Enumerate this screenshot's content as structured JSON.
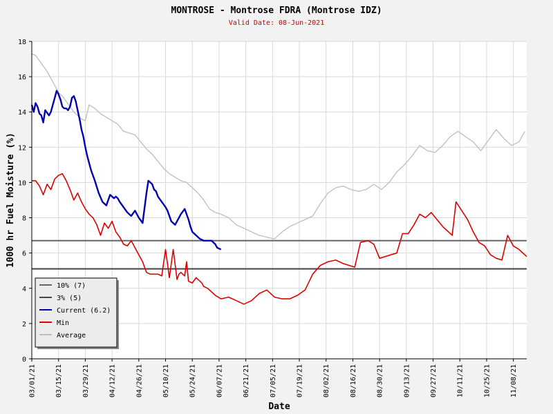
{
  "title": "MONTROSE - Montrose FDRA (Montrose IDZ)",
  "subtitle": "Valid Date: 08-Jun-2021",
  "colors": {
    "background": "#f2f2f2",
    "plot_bg": "#ffffff",
    "grid": "#d8d8d8",
    "title": "#000000",
    "subtitle": "#cc0000",
    "current": "#0000b0",
    "min": "#dd0000",
    "average": "#bdbdbd",
    "threshold": "#555555"
  },
  "chart_data": {
    "type": "line",
    "xlabel": "Date",
    "ylabel": "1000 hr Fuel Moisture (%)",
    "ylim": [
      0,
      18
    ],
    "yticks": [
      0,
      2,
      4,
      6,
      8,
      10,
      12,
      14,
      16,
      18
    ],
    "xlim": [
      "2021-03-01",
      "2021-11-15"
    ],
    "xticks": [
      "03/01/21",
      "03/15/21",
      "03/29/21",
      "04/12/21",
      "04/26/21",
      "05/10/21",
      "05/24/21",
      "06/07/21",
      "06/21/21",
      "07/05/21",
      "07/19/21",
      "08/02/21",
      "08/16/21",
      "08/30/21",
      "09/13/21",
      "09/27/21",
      "10/11/21",
      "10/25/21",
      "11/08/21"
    ],
    "grid": true,
    "legend_position": "bottom-left",
    "hlines": [
      {
        "name": "10% (7)",
        "value": 6.7,
        "color": "#666666"
      },
      {
        "name": "3% (5)",
        "value": 5.1,
        "color": "#444444"
      }
    ],
    "series": [
      {
        "name": "Current (6.2)",
        "color": "#0000b0",
        "x": [
          "2021-03-01",
          "2021-03-02",
          "2021-03-03",
          "2021-03-04",
          "2021-03-05",
          "2021-03-06",
          "2021-03-07",
          "2021-03-08",
          "2021-03-10",
          "2021-03-11",
          "2021-03-12",
          "2021-03-13",
          "2021-03-14",
          "2021-03-15",
          "2021-03-16",
          "2021-03-17",
          "2021-03-18",
          "2021-03-19",
          "2021-03-20",
          "2021-03-21",
          "2021-03-22",
          "2021-03-23",
          "2021-03-24",
          "2021-03-25",
          "2021-03-26",
          "2021-03-27",
          "2021-03-28",
          "2021-03-29",
          "2021-03-30",
          "2021-04-01",
          "2021-04-03",
          "2021-04-05",
          "2021-04-07",
          "2021-04-09",
          "2021-04-11",
          "2021-04-13",
          "2021-04-14",
          "2021-04-15",
          "2021-04-16",
          "2021-04-18",
          "2021-04-20",
          "2021-04-22",
          "2021-04-24",
          "2021-04-26",
          "2021-04-28",
          "2021-04-30",
          "2021-05-01",
          "2021-05-02",
          "2021-05-03",
          "2021-05-04",
          "2021-05-05",
          "2021-05-06",
          "2021-05-08",
          "2021-05-10",
          "2021-05-11",
          "2021-05-13",
          "2021-05-15",
          "2021-05-17",
          "2021-05-18",
          "2021-05-20",
          "2021-05-21",
          "2021-05-22",
          "2021-05-23",
          "2021-05-24",
          "2021-05-26",
          "2021-05-28",
          "2021-05-30",
          "2021-06-01",
          "2021-06-03",
          "2021-06-05",
          "2021-06-06",
          "2021-06-08"
        ],
        "y": [
          14.4,
          14.0,
          14.5,
          14.3,
          13.9,
          13.8,
          13.4,
          14.1,
          13.8,
          14.0,
          14.4,
          14.8,
          15.2,
          15.0,
          14.7,
          14.3,
          14.2,
          14.2,
          14.1,
          14.3,
          14.8,
          14.9,
          14.6,
          14.1,
          13.6,
          13.0,
          12.6,
          12.0,
          11.5,
          10.7,
          10.1,
          9.4,
          8.9,
          8.7,
          9.3,
          9.1,
          9.2,
          9.1,
          8.9,
          8.6,
          8.3,
          8.1,
          8.4,
          8.0,
          7.7,
          9.4,
          10.1,
          10.0,
          9.9,
          9.6,
          9.5,
          9.2,
          8.9,
          8.6,
          8.4,
          7.8,
          7.6,
          8.0,
          8.2,
          8.5,
          8.2,
          7.9,
          7.5,
          7.2,
          7.0,
          6.8,
          6.7,
          6.7,
          6.7,
          6.5,
          6.3,
          6.2
        ]
      },
      {
        "name": "Min",
        "color": "#dd0000",
        "x": [
          "2021-03-01",
          "2021-03-03",
          "2021-03-05",
          "2021-03-07",
          "2021-03-09",
          "2021-03-11",
          "2021-03-13",
          "2021-03-15",
          "2021-03-17",
          "2021-03-19",
          "2021-03-21",
          "2021-03-23",
          "2021-03-25",
          "2021-03-27",
          "2021-03-29",
          "2021-03-31",
          "2021-04-02",
          "2021-04-04",
          "2021-04-06",
          "2021-04-08",
          "2021-04-10",
          "2021-04-12",
          "2021-04-14",
          "2021-04-16",
          "2021-04-18",
          "2021-04-20",
          "2021-04-22",
          "2021-04-24",
          "2021-04-26",
          "2021-04-28",
          "2021-04-30",
          "2021-05-02",
          "2021-05-04",
          "2021-05-06",
          "2021-05-08",
          "2021-05-10",
          "2021-05-12",
          "2021-05-14",
          "2021-05-16",
          "2021-05-17",
          "2021-05-18",
          "2021-05-19",
          "2021-05-20",
          "2021-05-21",
          "2021-05-22",
          "2021-05-24",
          "2021-05-26",
          "2021-05-28",
          "2021-05-29",
          "2021-05-30",
          "2021-06-01",
          "2021-06-03",
          "2021-06-05",
          "2021-06-08",
          "2021-06-12",
          "2021-06-16",
          "2021-06-20",
          "2021-06-24",
          "2021-06-28",
          "2021-07-02",
          "2021-07-06",
          "2021-07-10",
          "2021-07-14",
          "2021-07-18",
          "2021-07-22",
          "2021-07-26",
          "2021-07-30",
          "2021-08-03",
          "2021-08-07",
          "2021-08-11",
          "2021-08-14",
          "2021-08-17",
          "2021-08-20",
          "2021-08-24",
          "2021-08-27",
          "2021-08-30",
          "2021-09-02",
          "2021-09-05",
          "2021-09-08",
          "2021-09-11",
          "2021-09-14",
          "2021-09-17",
          "2021-09-20",
          "2021-09-23",
          "2021-09-26",
          "2021-09-29",
          "2021-10-02",
          "2021-10-05",
          "2021-10-07",
          "2021-10-09",
          "2021-10-12",
          "2021-10-15",
          "2021-10-18",
          "2021-10-21",
          "2021-10-24",
          "2021-10-27",
          "2021-10-30",
          "2021-11-02",
          "2021-11-05",
          "2021-11-08",
          "2021-11-11",
          "2021-11-15"
        ],
        "y": [
          10.1,
          10.1,
          9.8,
          9.3,
          9.9,
          9.6,
          10.2,
          10.4,
          10.5,
          10.1,
          9.6,
          9.0,
          9.4,
          8.9,
          8.5,
          8.2,
          8.0,
          7.6,
          7.0,
          7.7,
          7.4,
          7.8,
          7.2,
          6.9,
          6.5,
          6.4,
          6.7,
          6.3,
          5.9,
          5.5,
          4.9,
          4.8,
          4.8,
          4.8,
          4.7,
          6.2,
          4.6,
          6.2,
          4.5,
          4.8,
          4.9,
          4.8,
          4.7,
          5.5,
          4.4,
          4.3,
          4.6,
          4.4,
          4.3,
          4.1,
          4.0,
          3.8,
          3.6,
          3.4,
          3.5,
          3.3,
          3.1,
          3.3,
          3.7,
          3.9,
          3.5,
          3.4,
          3.4,
          3.6,
          3.9,
          4.8,
          5.3,
          5.5,
          5.6,
          5.4,
          5.3,
          5.2,
          6.6,
          6.7,
          6.5,
          5.7,
          5.8,
          5.9,
          6.0,
          7.1,
          7.1,
          7.6,
          8.2,
          8.0,
          8.3,
          7.9,
          7.5,
          7.2,
          7.0,
          8.9,
          8.4,
          7.9,
          7.2,
          6.6,
          6.4,
          5.9,
          5.7,
          5.6,
          7.0,
          6.4,
          6.2,
          5.8
        ]
      },
      {
        "name": "Average",
        "color": "#bdbdbd",
        "x": [
          "2021-03-01",
          "2021-03-03",
          "2021-03-05",
          "2021-03-07",
          "2021-03-09",
          "2021-03-11",
          "2021-03-13",
          "2021-03-15",
          "2021-03-17",
          "2021-03-19",
          "2021-03-21",
          "2021-03-23",
          "2021-03-25",
          "2021-03-27",
          "2021-03-29",
          "2021-03-31",
          "2021-04-03",
          "2021-04-06",
          "2021-04-09",
          "2021-04-12",
          "2021-04-15",
          "2021-04-18",
          "2021-04-21",
          "2021-04-24",
          "2021-04-27",
          "2021-04-30",
          "2021-05-03",
          "2021-05-06",
          "2021-05-09",
          "2021-05-12",
          "2021-05-15",
          "2021-05-18",
          "2021-05-21",
          "2021-05-24",
          "2021-05-27",
          "2021-05-30",
          "2021-06-02",
          "2021-06-05",
          "2021-06-08",
          "2021-06-12",
          "2021-06-16",
          "2021-06-20",
          "2021-06-24",
          "2021-06-28",
          "2021-07-02",
          "2021-07-06",
          "2021-07-10",
          "2021-07-14",
          "2021-07-18",
          "2021-07-22",
          "2021-07-26",
          "2021-07-30",
          "2021-08-03",
          "2021-08-07",
          "2021-08-11",
          "2021-08-15",
          "2021-08-19",
          "2021-08-23",
          "2021-08-27",
          "2021-08-31",
          "2021-09-04",
          "2021-09-08",
          "2021-09-12",
          "2021-09-16",
          "2021-09-20",
          "2021-09-24",
          "2021-09-28",
          "2021-10-02",
          "2021-10-06",
          "2021-10-10",
          "2021-10-14",
          "2021-10-18",
          "2021-10-22",
          "2021-10-26",
          "2021-10-30",
          "2021-11-03",
          "2021-11-07",
          "2021-11-11",
          "2021-11-14"
        ],
        "y": [
          17.3,
          17.2,
          16.9,
          16.6,
          16.3,
          15.9,
          15.5,
          15.1,
          14.9,
          14.6,
          14.3,
          14.0,
          13.8,
          13.6,
          13.5,
          14.4,
          14.2,
          13.9,
          13.7,
          13.5,
          13.3,
          12.9,
          12.8,
          12.7,
          12.3,
          11.9,
          11.6,
          11.2,
          10.8,
          10.5,
          10.3,
          10.1,
          10.0,
          9.7,
          9.4,
          9.0,
          8.5,
          8.3,
          8.2,
          8.0,
          7.6,
          7.4,
          7.2,
          7.0,
          6.9,
          6.8,
          7.2,
          7.5,
          7.7,
          7.9,
          8.1,
          8.8,
          9.4,
          9.7,
          9.8,
          9.6,
          9.5,
          9.6,
          9.9,
          9.6,
          10.0,
          10.6,
          11.0,
          11.5,
          12.1,
          11.8,
          11.7,
          12.1,
          12.6,
          12.9,
          12.6,
          12.3,
          11.8,
          12.4,
          13.0,
          12.5,
          12.1,
          12.3,
          12.9
        ]
      }
    ]
  }
}
